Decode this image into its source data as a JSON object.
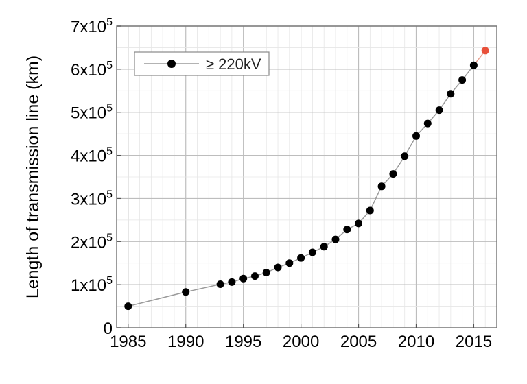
{
  "chart_data": {
    "type": "line",
    "title": "",
    "xlabel": "",
    "ylabel": "Length of transmission line (km)",
    "xlim": [
      1984,
      2017
    ],
    "ylim": [
      0,
      700000
    ],
    "x_ticks": [
      1985,
      1990,
      1995,
      2000,
      2005,
      2010,
      2015
    ],
    "x_tick_labels": [
      "1985",
      "1990",
      "1995",
      "2000",
      "2005",
      "2010",
      "2015"
    ],
    "y_ticks": [
      0,
      100000,
      200000,
      300000,
      400000,
      500000,
      600000,
      700000
    ],
    "y_tick_labels": [
      {
        "mantissa": "0",
        "exp": ""
      },
      {
        "mantissa": "1x10",
        "exp": "5"
      },
      {
        "mantissa": "2x10",
        "exp": "5"
      },
      {
        "mantissa": "3x10",
        "exp": "5"
      },
      {
        "mantissa": "4x10",
        "exp": "5"
      },
      {
        "mantissa": "5x10",
        "exp": "5"
      },
      {
        "mantissa": "6x10",
        "exp": "5"
      },
      {
        "mantissa": "7x10",
        "exp": "5"
      }
    ],
    "grid": true,
    "legend_position": "top-left",
    "series": [
      {
        "name": "≥ 220kV",
        "color": "#000000",
        "line_color": "#9a9a9a",
        "x": [
          1985,
          1990,
          1993,
          1994,
          1995,
          1996,
          1997,
          1998,
          1999,
          2000,
          2001,
          2002,
          2003,
          2004,
          2005,
          2006,
          2007,
          2008,
          2009,
          2010,
          2011,
          2012,
          2013,
          2014,
          2015
        ],
        "y": [
          50000,
          83000,
          101000,
          106000,
          114000,
          120000,
          128000,
          140000,
          150000,
          162000,
          175000,
          188000,
          205000,
          228000,
          242000,
          272000,
          328000,
          357000,
          398000,
          445000,
          474000,
          505000,
          543000,
          575000,
          609000
        ]
      },
      {
        "name": "",
        "color": "#e8503a",
        "line_color": "#e8a090",
        "x": [
          2015,
          2016
        ],
        "y": [
          609000,
          643000
        ]
      }
    ]
  }
}
